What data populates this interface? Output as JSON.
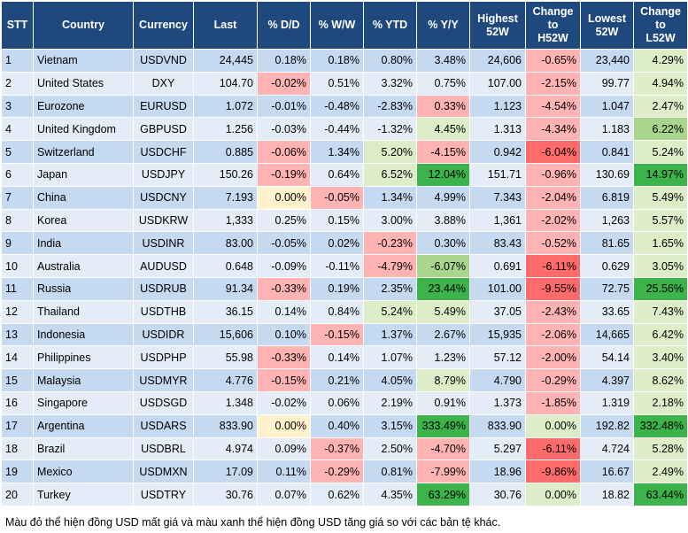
{
  "table": {
    "header": [
      "STT",
      "Country",
      "Currency",
      "Last",
      "% D/D",
      "% W/W",
      "% YTD",
      "% Y/Y",
      "Highest\n52W",
      "Change\nto\nH52W",
      "Lowest\n52W",
      "Change\nto\nL52W"
    ],
    "rows": [
      [
        "1",
        "Vietnam",
        "USDVND",
        "24,445",
        "0.18%",
        "0.18%",
        "0.80%",
        "3.48%",
        "24,606",
        "-0.65%",
        "23,440",
        "4.29%"
      ],
      [
        "2",
        "United States",
        "DXY",
        "104.70",
        "-0.02%",
        "0.51%",
        "3.32%",
        "0.75%",
        "107.00",
        "-2.15%",
        "99.77",
        "4.94%"
      ],
      [
        "3",
        "Eurozone",
        "EURUSD",
        "1.072",
        "-0.01%",
        "-0.48%",
        "-2.83%",
        "0.33%",
        "1.123",
        "-4.54%",
        "1.047",
        "2.47%"
      ],
      [
        "4",
        "United Kingdom",
        "GBPUSD",
        "1.256",
        "-0.03%",
        "-0.44%",
        "-1.32%",
        "4.45%",
        "1.313",
        "-4.34%",
        "1.183",
        "6.22%"
      ],
      [
        "5",
        "Switzerland",
        "USDCHF",
        "0.885",
        "-0.06%",
        "1.34%",
        "5.20%",
        "-4.15%",
        "0.942",
        "-6.04%",
        "0.841",
        "5.24%"
      ],
      [
        "6",
        "Japan",
        "USDJPY",
        "150.26",
        "-0.19%",
        "0.64%",
        "6.52%",
        "12.04%",
        "151.71",
        "-0.96%",
        "130.69",
        "14.97%"
      ],
      [
        "7",
        "China",
        "USDCNY",
        "7.193",
        "0.00%",
        "-0.05%",
        "1.34%",
        "4.99%",
        "7.343",
        "-2.04%",
        "6.819",
        "5.49%"
      ],
      [
        "8",
        "Korea",
        "USDKRW",
        "1,333",
        "0.25%",
        "0.15%",
        "3.00%",
        "3.88%",
        "1,361",
        "-2.02%",
        "1,263",
        "5.57%"
      ],
      [
        "9",
        "India",
        "USDINR",
        "83.00",
        "-0.05%",
        "0.02%",
        "-0.23%",
        "0.30%",
        "83.43",
        "-0.52%",
        "81.65",
        "1.65%"
      ],
      [
        "10",
        "Australia",
        "AUDUSD",
        "0.648",
        "-0.09%",
        "-0.11%",
        "-4.79%",
        "-6.07%",
        "0.691",
        "-6.11%",
        "0.629",
        "3.05%"
      ],
      [
        "11",
        "Russia",
        "USDRUB",
        "91.34",
        "-0.33%",
        "0.19%",
        "2.35%",
        "23.44%",
        "101.00",
        "-9.55%",
        "72.75",
        "25.56%"
      ],
      [
        "12",
        "Thailand",
        "USDTHB",
        "36.15",
        "0.14%",
        "0.84%",
        "5.24%",
        "5.49%",
        "37.05",
        "-2.43%",
        "33.65",
        "7.43%"
      ],
      [
        "13",
        "Indonesia",
        "USDIDR",
        "15,606",
        "0.10%",
        "-0.15%",
        "1.37%",
        "2.67%",
        "15,935",
        "-2.06%",
        "14,665",
        "6.42%"
      ],
      [
        "14",
        "Philippines",
        "USDPHP",
        "55.98",
        "-0.33%",
        "0.14%",
        "1.07%",
        "1.23%",
        "57.12",
        "-2.00%",
        "54.14",
        "3.40%"
      ],
      [
        "15",
        "Malaysia",
        "USDMYR",
        "4.776",
        "-0.15%",
        "0.21%",
        "4.05%",
        "8.79%",
        "4.790",
        "-0.29%",
        "4.397",
        "8.62%"
      ],
      [
        "16",
        "Singapore",
        "USDSGD",
        "1.348",
        "-0.02%",
        "0.06%",
        "2.19%",
        "0.91%",
        "1.373",
        "-1.85%",
        "1.319",
        "2.18%"
      ],
      [
        "17",
        "Argentina",
        "USDARS",
        "833.90",
        "0.00%",
        "0.40%",
        "3.15%",
        "333.49%",
        "833.90",
        "0.00%",
        "192.82",
        "332.48%"
      ],
      [
        "18",
        "Brazil",
        "USDBRL",
        "4.974",
        "0.09%",
        "-0.37%",
        "2.50%",
        "-4.70%",
        "5.297",
        "-6.11%",
        "4.724",
        "5.28%"
      ],
      [
        "19",
        "Mexico",
        "USDMXN",
        "17.09",
        "0.11%",
        "-0.29%",
        "0.81%",
        "-7.99%",
        "18.96",
        "-9.86%",
        "16.67",
        "2.49%"
      ],
      [
        "20",
        "Turkey",
        "USDTRY",
        "30.76",
        "0.07%",
        "0.62%",
        "4.35%",
        "63.29%",
        "30.76",
        "0.00%",
        "18.82",
        "63.44%"
      ]
    ]
  },
  "footnote": "Màu đỏ thể hiện đồng USD mất giá và màu xanh thể hiện đồng USD tăng giá so với các bản tệ khác."
}
